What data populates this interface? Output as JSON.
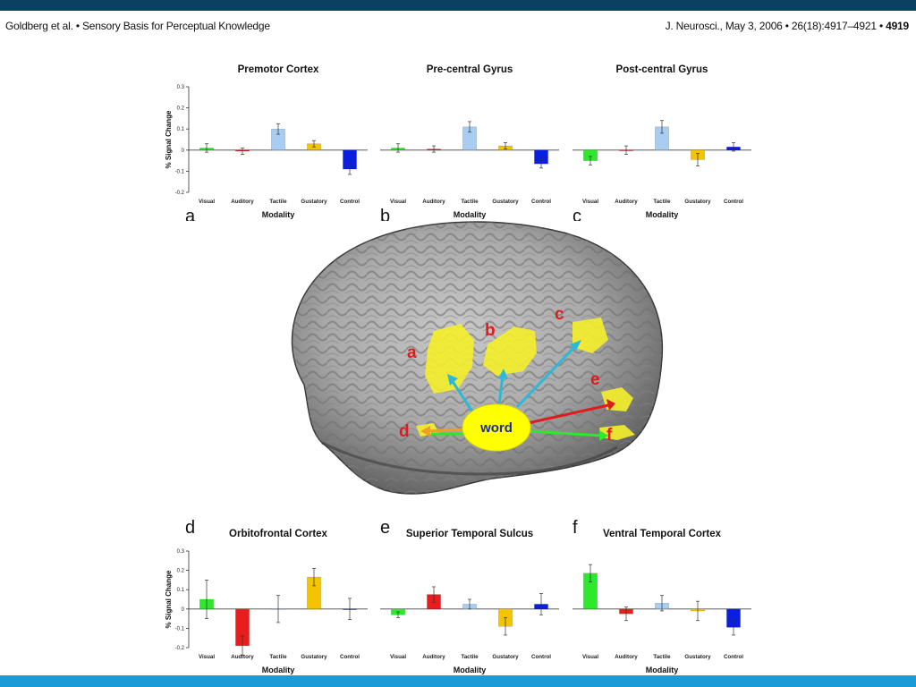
{
  "header": {
    "left": "Goldberg et al. • Sensory Basis for Perceptual Knowledge",
    "right_prefix": "J. Neurosci., May 3, 2006 • 26(18):4917–4921 • ",
    "right_page": "4919"
  },
  "brain": {
    "center_label": "word",
    "region_labels": [
      "a",
      "b",
      "c",
      "d",
      "e",
      "f"
    ],
    "colors": {
      "region": "#f5ee2a",
      "label": "#e01b1b",
      "bubble": "#ffff00",
      "bubble_text": "#1a2aa0"
    }
  },
  "colors": {
    "Visual": "#2ee82e",
    "Auditory": "#e81e1e",
    "Tactile": "#a8cdf0",
    "Gustatory": "#f5c400",
    "Control": "#0a1ee0"
  },
  "chart_data": [
    {
      "type": "bar",
      "panel": "a",
      "title": "Premotor Cortex",
      "xlabel": "Modality",
      "ylabel": "% Signal Change",
      "categories": [
        "Visual",
        "Auditory",
        "Tactile",
        "Gustatory",
        "Control"
      ],
      "values": [
        0.01,
        -0.005,
        0.1,
        0.03,
        -0.09
      ],
      "errors": [
        0.02,
        0.015,
        0.025,
        0.015,
        0.025
      ],
      "ylim": [
        -0.2,
        0.3
      ],
      "yticks": [
        "0.3",
        "0.2",
        "0.1",
        "0",
        "-0.1",
        "-0.2"
      ]
    },
    {
      "type": "bar",
      "panel": "b",
      "title": "Pre-central Gyrus",
      "xlabel": "Modality",
      "ylabel": "",
      "categories": [
        "Visual",
        "Auditory",
        "Tactile",
        "Gustatory",
        "Control"
      ],
      "values": [
        0.01,
        0.005,
        0.11,
        0.02,
        -0.065
      ],
      "errors": [
        0.02,
        0.015,
        0.025,
        0.015,
        0.02
      ],
      "ylim": [
        -0.2,
        0.3
      ],
      "yticks": []
    },
    {
      "type": "bar",
      "panel": "c",
      "title": "Post-central Gyrus",
      "xlabel": "Modality",
      "ylabel": "",
      "categories": [
        "Visual",
        "Auditory",
        "Tactile",
        "Gustatory",
        "Control"
      ],
      "values": [
        -0.05,
        0.0,
        0.11,
        -0.045,
        0.015
      ],
      "errors": [
        0.02,
        0.02,
        0.03,
        0.03,
        0.02
      ],
      "ylim": [
        -0.2,
        0.3
      ],
      "yticks": []
    },
    {
      "type": "bar",
      "panel": "d",
      "title": "Orbitofrontal Cortex",
      "xlabel": "Modality",
      "ylabel": "% Signal Change",
      "categories": [
        "Visual",
        "Auditory",
        "Tactile",
        "Gustatory",
        "Control"
      ],
      "values": [
        0.05,
        -0.19,
        0.0,
        0.165,
        0.0
      ],
      "errors": [
        0.1,
        0.05,
        0.07,
        0.045,
        0.055
      ],
      "ylim": [
        -0.2,
        0.3
      ],
      "yticks": [
        "0.3",
        "0.2",
        "0.1",
        "0",
        "-0.1",
        "-0.2"
      ]
    },
    {
      "type": "bar",
      "panel": "e",
      "title": "Superior Temporal Sulcus",
      "xlabel": "Modality",
      "ylabel": "",
      "categories": [
        "Visual",
        "Auditory",
        "Tactile",
        "Gustatory",
        "Control"
      ],
      "values": [
        -0.03,
        0.075,
        0.025,
        -0.09,
        0.025
      ],
      "errors": [
        0.015,
        0.04,
        0.025,
        0.045,
        0.055
      ],
      "ylim": [
        -0.2,
        0.3
      ],
      "yticks": []
    },
    {
      "type": "bar",
      "panel": "f",
      "title": "Ventral Temporal Cortex",
      "xlabel": "Modality",
      "ylabel": "",
      "categories": [
        "Visual",
        "Auditory",
        "Tactile",
        "Gustatory",
        "Control"
      ],
      "values": [
        0.185,
        -0.025,
        0.03,
        -0.01,
        -0.095
      ],
      "errors": [
        0.045,
        0.035,
        0.04,
        0.05,
        0.04
      ],
      "ylim": [
        -0.2,
        0.3
      ],
      "yticks": []
    }
  ]
}
